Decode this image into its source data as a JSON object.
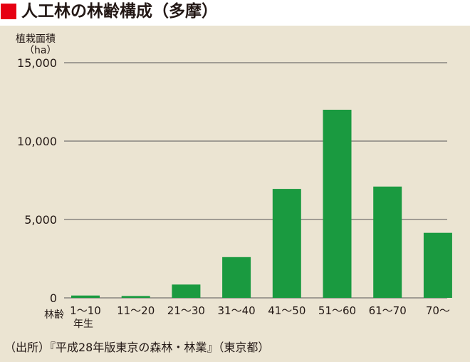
{
  "header": {
    "title": "人工林の林齢構成（多摩）"
  },
  "source_note": "（出所）『平成28年版東京の森林・林業』（東京都）",
  "colors": {
    "accent": "#e60012",
    "bar": "#1a9a40",
    "background": "#ebe4d2",
    "grid": "#555555"
  },
  "chart_data": {
    "type": "bar",
    "title": "人工林の林齢構成（多摩）",
    "ylabel": "植栽面積",
    "yunit": "（ha）",
    "xlabel": "林齢",
    "xlabel_sub": "年生",
    "categories": [
      "1～10",
      "11～20",
      "21～30",
      "31～40",
      "41～50",
      "51～60",
      "61～70",
      "70～"
    ],
    "values": [
      150,
      120,
      850,
      2600,
      6950,
      12000,
      7100,
      4150
    ],
    "ylim": [
      0,
      15000
    ],
    "yticks": [
      0,
      5000,
      10000,
      15000
    ],
    "ytick_labels": [
      "0",
      "5,000",
      "10,000",
      "15,000"
    ],
    "grid": true
  }
}
